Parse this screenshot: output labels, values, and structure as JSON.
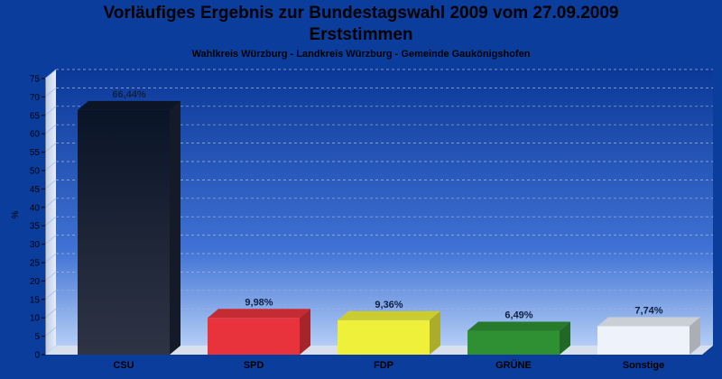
{
  "chart_data": {
    "type": "bar",
    "title": "Vorläufiges Ergebnis zur Bundestagswahl 2009 vom 27.09.2009",
    "title2": "Erststimmen",
    "subtitle": "Wahlkreis Würzburg - Landkreis Würzburg - Gemeinde Gaukönigshofen",
    "ylabel": "%",
    "xlabel": "",
    "ylim": [
      0,
      75
    ],
    "yticks": [
      0,
      5,
      10,
      15,
      20,
      25,
      30,
      35,
      40,
      45,
      50,
      55,
      60,
      65,
      70,
      75
    ],
    "categories": [
      "CSU",
      "SPD",
      "FDP",
      "GRÜNE",
      "Sonstige"
    ],
    "values": [
      66.44,
      9.98,
      9.36,
      6.49,
      7.74
    ],
    "value_labels": [
      "66,44%",
      "9,98%",
      "9,36%",
      "6,49%",
      "7,74%"
    ],
    "colors": [
      "#1c2436",
      "#e8323c",
      "#eef03a",
      "#2e8f33",
      "#eef2fb"
    ],
    "grid": true,
    "legend": "none"
  }
}
